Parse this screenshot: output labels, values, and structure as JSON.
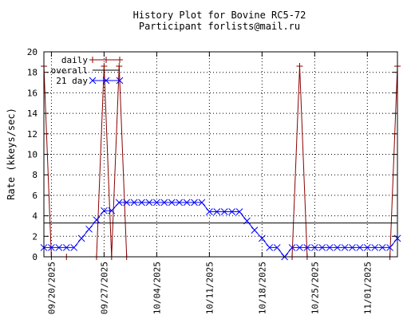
{
  "chart_data": {
    "type": "line",
    "title": "History Plot for Bovine RC5-72",
    "subtitle": "Participant forlists@mail.ru",
    "ylabel": "Rate (kkeys/sec)",
    "xlabel": "",
    "ylim": [
      0,
      20
    ],
    "yticks": [
      0,
      2,
      4,
      6,
      8,
      10,
      12,
      14,
      16,
      18,
      20
    ],
    "xlim": [
      "2025-09-19",
      "2025-11-05"
    ],
    "xticks": [
      "09/20/2025",
      "09/27/2025",
      "10/04/2025",
      "10/11/2025",
      "10/18/2025",
      "10/25/2025",
      "11/01/2025"
    ],
    "xtick_dates": [
      "2025-09-20",
      "2025-09-27",
      "2025-10-04",
      "2025-10-11",
      "2025-10-18",
      "2025-10-25",
      "2025-11-01"
    ],
    "grid": true,
    "legend_position": "top-left",
    "series": [
      {
        "name": "daily",
        "color": "#8b0000",
        "marker": "plus",
        "points": [
          [
            "2025-09-19",
            18.6
          ],
          [
            "2025-09-20",
            0
          ],
          [
            "2025-09-22",
            0
          ],
          [
            "2025-09-26",
            0
          ],
          [
            "2025-09-27",
            18.6
          ],
          [
            "2025-09-28",
            0
          ],
          [
            "2025-09-29",
            18.6
          ],
          [
            "2025-09-30",
            0
          ],
          [
            "2025-10-22",
            0
          ],
          [
            "2025-10-23",
            18.6
          ],
          [
            "2025-10-24",
            0
          ],
          [
            "2025-11-04",
            0
          ],
          [
            "2025-11-05",
            18.6
          ]
        ]
      },
      {
        "name": "overall",
        "color": "#000000",
        "marker": "none",
        "points": [
          [
            "2025-09-19",
            3.3
          ],
          [
            "2025-11-05",
            3.3
          ]
        ]
      },
      {
        "name": "21 day",
        "color": "#0000ff",
        "marker": "x",
        "points": [
          [
            "2025-09-19",
            0.9
          ],
          [
            "2025-09-20",
            0.9
          ],
          [
            "2025-09-21",
            0.9
          ],
          [
            "2025-09-22",
            0.9
          ],
          [
            "2025-09-23",
            0.9
          ],
          [
            "2025-09-24",
            1.8
          ],
          [
            "2025-09-25",
            2.7
          ],
          [
            "2025-09-26",
            3.6
          ],
          [
            "2025-09-27",
            4.5
          ],
          [
            "2025-09-28",
            4.5
          ],
          [
            "2025-09-29",
            5.3
          ],
          [
            "2025-09-30",
            5.3
          ],
          [
            "2025-10-01",
            5.3
          ],
          [
            "2025-10-02",
            5.3
          ],
          [
            "2025-10-03",
            5.3
          ],
          [
            "2025-10-04",
            5.3
          ],
          [
            "2025-10-05",
            5.3
          ],
          [
            "2025-10-06",
            5.3
          ],
          [
            "2025-10-07",
            5.3
          ],
          [
            "2025-10-08",
            5.3
          ],
          [
            "2025-10-09",
            5.3
          ],
          [
            "2025-10-10",
            5.3
          ],
          [
            "2025-10-11",
            4.4
          ],
          [
            "2025-10-12",
            4.4
          ],
          [
            "2025-10-13",
            4.4
          ],
          [
            "2025-10-14",
            4.4
          ],
          [
            "2025-10-15",
            4.4
          ],
          [
            "2025-10-16",
            3.5
          ],
          [
            "2025-10-17",
            2.6
          ],
          [
            "2025-10-18",
            1.8
          ],
          [
            "2025-10-19",
            0.9
          ],
          [
            "2025-10-20",
            0.9
          ],
          [
            "2025-10-21",
            0
          ],
          [
            "2025-10-22",
            0.9
          ],
          [
            "2025-10-23",
            0.9
          ],
          [
            "2025-10-24",
            0.9
          ],
          [
            "2025-10-25",
            0.9
          ],
          [
            "2025-10-26",
            0.9
          ],
          [
            "2025-10-27",
            0.9
          ],
          [
            "2025-10-28",
            0.9
          ],
          [
            "2025-10-29",
            0.9
          ],
          [
            "2025-10-30",
            0.9
          ],
          [
            "2025-10-31",
            0.9
          ],
          [
            "2025-11-01",
            0.9
          ],
          [
            "2025-11-02",
            0.9
          ],
          [
            "2025-11-03",
            0.9
          ],
          [
            "2025-11-04",
            0.9
          ],
          [
            "2025-11-05",
            1.8
          ]
        ]
      }
    ]
  }
}
